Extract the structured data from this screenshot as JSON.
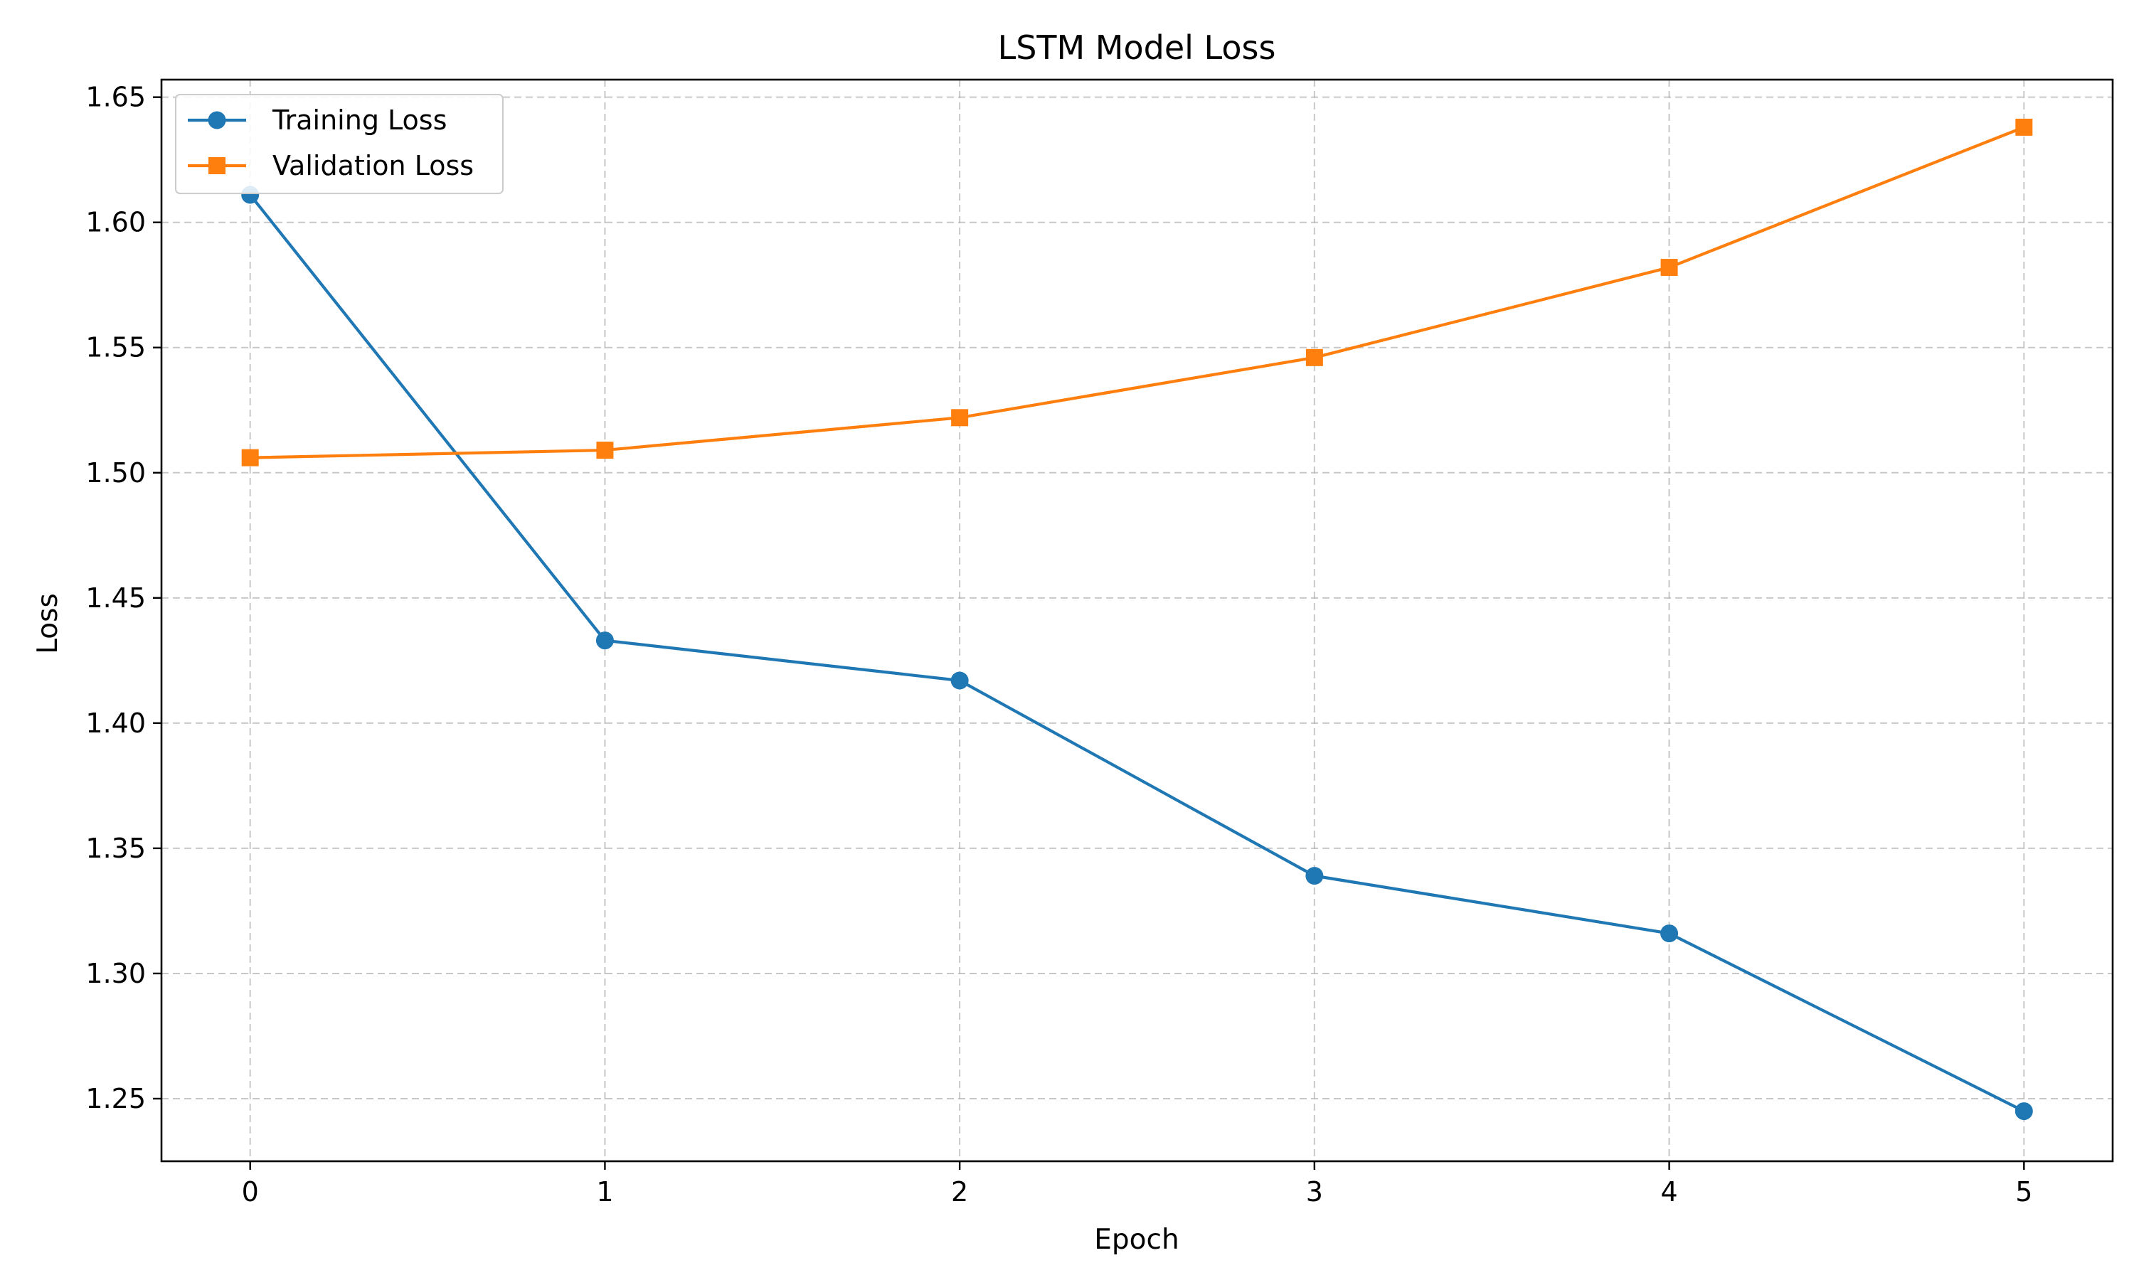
{
  "chart_data": {
    "type": "line",
    "title": "LSTM Model Loss",
    "xlabel": "Epoch",
    "ylabel": "Loss",
    "x": [
      0,
      1,
      2,
      3,
      4,
      5
    ],
    "xlim": [
      -0.25,
      5.25
    ],
    "ylim": [
      1.225,
      1.657
    ],
    "xticks": [
      0,
      1,
      2,
      3,
      4,
      5
    ],
    "xtick_labels": [
      "0",
      "1",
      "2",
      "3",
      "4",
      "5"
    ],
    "yticks": [
      1.25,
      1.3,
      1.35,
      1.4,
      1.45,
      1.5,
      1.55,
      1.6,
      1.65
    ],
    "ytick_labels": [
      "1.25",
      "1.30",
      "1.35",
      "1.40",
      "1.45",
      "1.50",
      "1.55",
      "1.60",
      "1.65"
    ],
    "grid": true,
    "legend_position": "top-left",
    "series": [
      {
        "name": "Training Loss",
        "values": [
          1.611,
          1.433,
          1.417,
          1.339,
          1.316,
          1.245
        ],
        "color": "#1f77b4",
        "marker": "circle"
      },
      {
        "name": "Validation Loss",
        "values": [
          1.506,
          1.509,
          1.522,
          1.546,
          1.582,
          1.638
        ],
        "color": "#ff7f0e",
        "marker": "square"
      }
    ]
  }
}
